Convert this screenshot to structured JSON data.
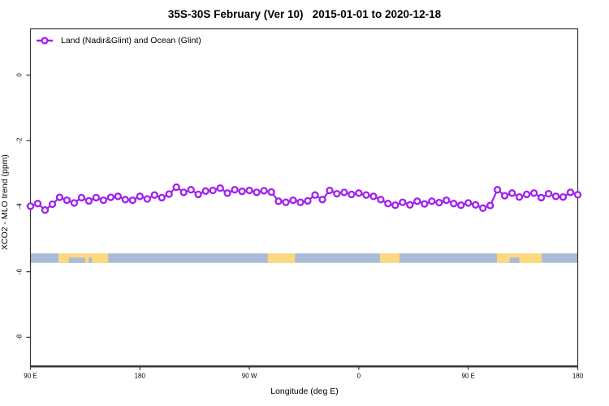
{
  "title": "35S-30S February (Ver 10)   2015-01-01 to 2020-12-18",
  "legend": {
    "label": "Land (Nadir&Glint) and Ocean (Glint)",
    "marker": "line-with-open-circle",
    "color": "#A020F0"
  },
  "chart_data": {
    "type": "line",
    "title": "35S-30S February (Ver 10)   2015-01-01 to 2020-12-18",
    "xlabel": "Longitude (deg E)",
    "ylabel": "XCO2 - MLO trend (ppm)",
    "xlim": [
      90,
      540
    ],
    "ylim": [
      -8.87,
      1.41
    ],
    "grid": false,
    "legend_position": "top-left",
    "x_ticks": [
      {
        "value": 90,
        "label": "90 E"
      },
      {
        "value": 180,
        "label": "180"
      },
      {
        "value": 270,
        "label": "90 W"
      },
      {
        "value": 360,
        "label": "0"
      },
      {
        "value": 450,
        "label": "90 E"
      },
      {
        "value": 540,
        "label": "180"
      }
    ],
    "y_ticks": [
      {
        "value": 0,
        "label": "0"
      },
      {
        "value": -2,
        "label": "-2"
      },
      {
        "value": -4,
        "label": "-4"
      },
      {
        "value": -6,
        "label": "-6"
      },
      {
        "value": -8,
        "label": "-8"
      }
    ],
    "series": [
      {
        "name": "Land (Nadir&Glint) and Ocean (Glint)",
        "color": "#A020F0",
        "marker": "open-circle",
        "x_start": 90,
        "x_step": 6,
        "values": [
          -4.0,
          -3.92,
          -4.12,
          -3.94,
          -3.73,
          -3.82,
          -3.9,
          -3.74,
          -3.84,
          -3.74,
          -3.82,
          -3.73,
          -3.7,
          -3.8,
          -3.82,
          -3.7,
          -3.78,
          -3.66,
          -3.74,
          -3.63,
          -3.42,
          -3.58,
          -3.5,
          -3.64,
          -3.54,
          -3.52,
          -3.45,
          -3.6,
          -3.5,
          -3.55,
          -3.52,
          -3.58,
          -3.53,
          -3.57,
          -3.85,
          -3.88,
          -3.82,
          -3.88,
          -3.84,
          -3.66,
          -3.8,
          -3.52,
          -3.62,
          -3.58,
          -3.64,
          -3.6,
          -3.66,
          -3.7,
          -3.8,
          -3.92,
          -3.97,
          -3.88,
          -3.96,
          -3.85,
          -3.93,
          -3.85,
          -3.89,
          -3.82,
          -3.92,
          -3.97,
          -3.9,
          -3.96,
          -4.06,
          -3.98,
          -3.5,
          -3.68,
          -3.6,
          -3.72,
          -3.64,
          -3.6,
          -3.74,
          -3.62,
          -3.7,
          -3.72,
          -3.58,
          -3.65
        ]
      }
    ],
    "map_band": {
      "description": "land/ocean strip along 35S-30S latitude band",
      "ocean_color": "#A8BCD8",
      "land_color": "#FCD87E",
      "y_top_ppm": -5.44,
      "y_bottom_ppm": -5.73,
      "land_segments": [
        {
          "name": "australia",
          "from": 113,
          "to": 154,
          "notches": [
            {
              "from": 121.5,
              "to": 135
            },
            {
              "from": 138,
              "to": 140.5
            }
          ]
        },
        {
          "name": "south-america",
          "from": 285,
          "to": 307.5,
          "notches": []
        },
        {
          "name": "south-africa",
          "from": 377.5,
          "to": 393.5,
          "notches": []
        },
        {
          "name": "australia-2",
          "from": 473.5,
          "to": 510.5,
          "notches": [
            {
              "from": 484,
              "to": 492
            }
          ]
        }
      ]
    }
  }
}
